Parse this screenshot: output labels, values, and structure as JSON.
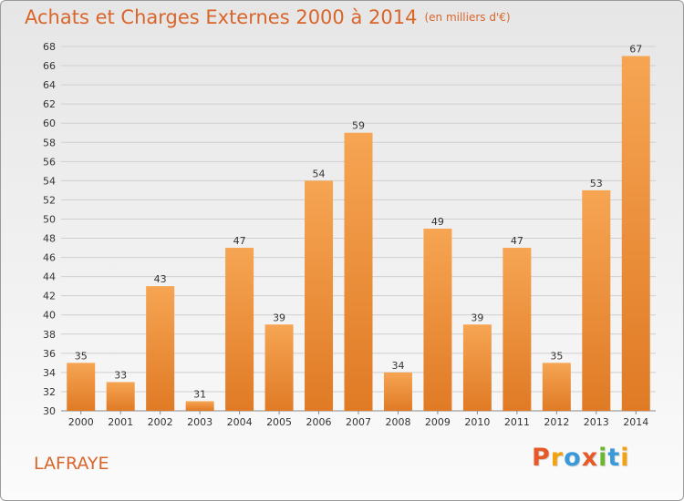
{
  "header": {
    "title": "Achats et Charges Externes 2000 à 2014",
    "subtitle": "(en milliers d'€)"
  },
  "footer": {
    "commune": "LAFRAYE",
    "logo_text": "Proxiti"
  },
  "colors": {
    "title": "#d9652a",
    "bar_top": "#f6a553",
    "bar_bottom": "#e07a25",
    "logo": [
      "#e8592a",
      "#f2a20e",
      "#3a9ad9",
      "#e8592a",
      "#6bb82e",
      "#3a9ad9",
      "#f2a20e"
    ]
  },
  "chart_data": {
    "type": "bar",
    "categories": [
      "2000",
      "2001",
      "2002",
      "2003",
      "2004",
      "2005",
      "2006",
      "2007",
      "2008",
      "2009",
      "2010",
      "2011",
      "2012",
      "2013",
      "2014"
    ],
    "values": [
      35,
      33,
      43,
      31,
      47,
      39,
      54,
      59,
      34,
      49,
      39,
      47,
      35,
      53,
      67
    ],
    "ylim": [
      30,
      68
    ],
    "ytick_step": 2,
    "grid": "horizontal",
    "data_labels": true
  }
}
